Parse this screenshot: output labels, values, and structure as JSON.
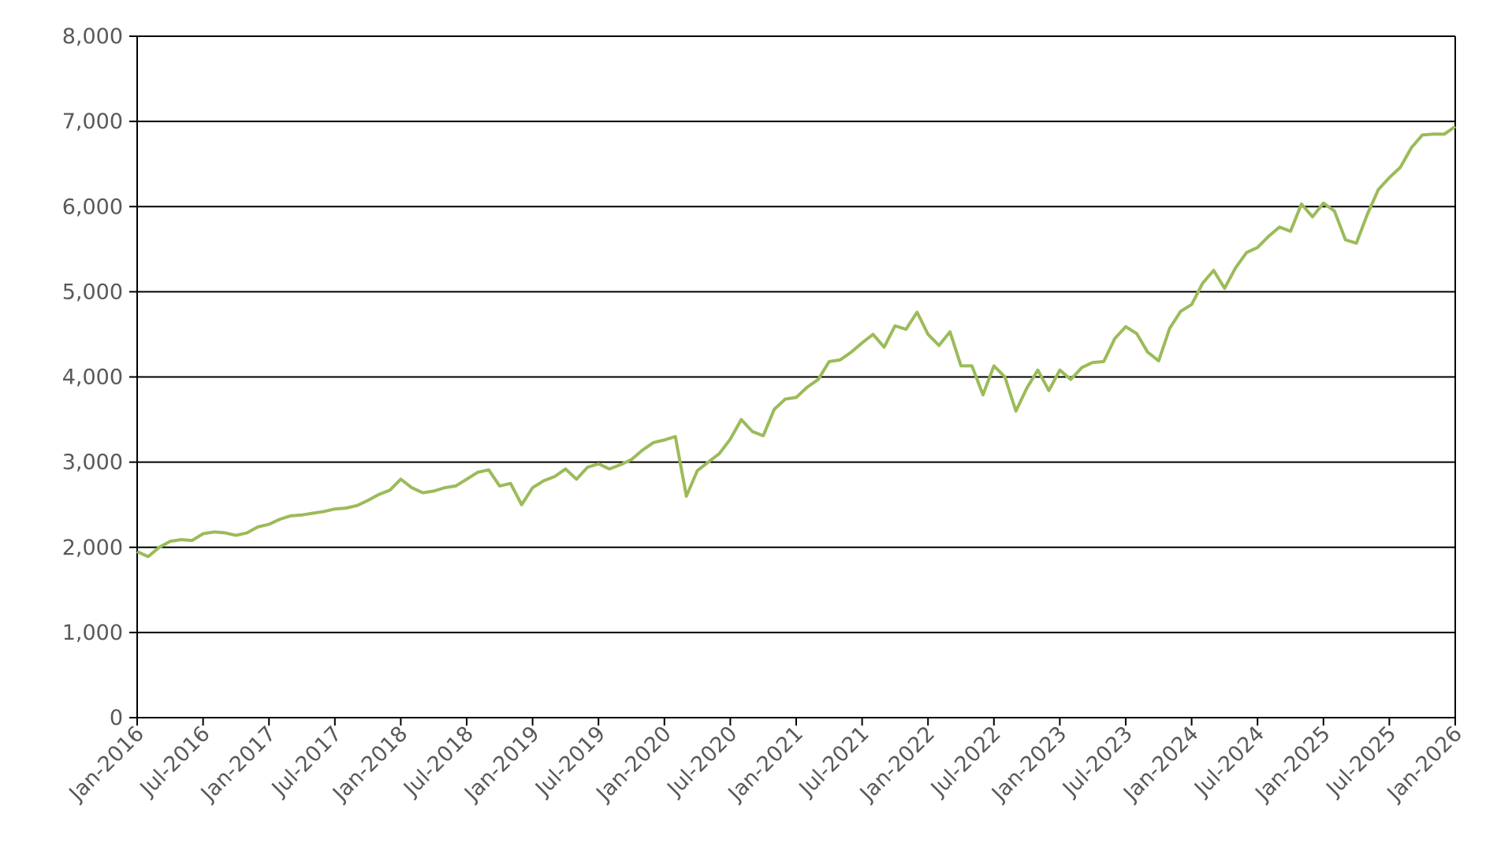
{
  "chart_data": {
    "type": "line",
    "x": [
      "2016-01",
      "2016-02",
      "2016-03",
      "2016-04",
      "2016-05",
      "2016-06",
      "2016-07",
      "2016-08",
      "2016-09",
      "2016-10",
      "2016-11",
      "2016-12",
      "2017-01",
      "2017-02",
      "2017-03",
      "2017-04",
      "2017-05",
      "2017-06",
      "2017-07",
      "2017-08",
      "2017-09",
      "2017-10",
      "2017-11",
      "2017-12",
      "2018-01",
      "2018-02",
      "2018-03",
      "2018-04",
      "2018-05",
      "2018-06",
      "2018-07",
      "2018-08",
      "2018-09",
      "2018-10",
      "2018-11",
      "2018-12",
      "2019-01",
      "2019-02",
      "2019-03",
      "2019-04",
      "2019-05",
      "2019-06",
      "2019-07",
      "2019-08",
      "2019-09",
      "2019-10",
      "2019-11",
      "2019-12",
      "2020-01",
      "2020-02",
      "2020-03",
      "2020-04",
      "2020-05",
      "2020-06",
      "2020-07",
      "2020-08",
      "2020-09",
      "2020-10",
      "2020-11",
      "2020-12",
      "2021-01",
      "2021-02",
      "2021-03",
      "2021-04",
      "2021-05",
      "2021-06",
      "2021-07",
      "2021-08",
      "2021-09",
      "2021-10",
      "2021-11",
      "2021-12",
      "2022-01",
      "2022-02",
      "2022-03",
      "2022-04",
      "2022-05",
      "2022-06",
      "2022-07",
      "2022-08",
      "2022-09",
      "2022-10",
      "2022-11",
      "2022-12",
      "2023-01",
      "2023-02",
      "2023-03",
      "2023-04",
      "2023-05",
      "2023-06",
      "2023-07",
      "2023-08",
      "2023-09",
      "2023-10",
      "2023-11",
      "2023-12",
      "2024-01",
      "2024-02",
      "2024-03",
      "2024-04",
      "2024-05",
      "2024-06",
      "2024-07",
      "2024-08",
      "2024-09",
      "2024-10",
      "2024-11",
      "2024-12",
      "2025-01",
      "2025-02",
      "2025-03",
      "2025-04",
      "2025-05",
      "2025-06",
      "2025-07",
      "2025-08",
      "2025-09",
      "2025-10",
      "2025-11",
      "2025-12",
      "2026-01"
    ],
    "series": [
      {
        "color": "#9bbb59",
        "values": [
          1950,
          1890,
          2000,
          2070,
          2090,
          2080,
          2160,
          2180,
          2170,
          2140,
          2170,
          2240,
          2270,
          2330,
          2370,
          2380,
          2400,
          2420,
          2450,
          2460,
          2490,
          2550,
          2620,
          2670,
          2800,
          2700,
          2640,
          2660,
          2700,
          2720,
          2800,
          2880,
          2910,
          2720,
          2750,
          2500,
          2700,
          2780,
          2830,
          2920,
          2800,
          2940,
          2980,
          2920,
          2970,
          3030,
          3140,
          3230,
          3260,
          3300,
          2600,
          2900,
          3000,
          3100,
          3270,
          3500,
          3360,
          3310,
          3620,
          3740,
          3760,
          3880,
          3970,
          4180,
          4200,
          4290,
          4400,
          4500,
          4350,
          4600,
          4560,
          4760,
          4500,
          4370,
          4530,
          4130,
          4130,
          3790,
          4130,
          4000,
          3600,
          3870,
          4080,
          3840,
          4080,
          3970,
          4110,
          4170,
          4180,
          4450,
          4590,
          4510,
          4290,
          4190,
          4570,
          4770,
          4850,
          5100,
          5250,
          5040,
          5280,
          5460,
          5520,
          5650,
          5760,
          5710,
          6030,
          5880,
          6040,
          5950,
          5610,
          5570,
          5910,
          6200,
          6340,
          6460,
          6690,
          6840,
          6850,
          6850,
          6940
        ]
      }
    ],
    "xlim": [
      "2016-01",
      "2026-01"
    ],
    "xticks": [
      {
        "value": "2016-01",
        "label": "Jan-2016"
      },
      {
        "value": "2016-07",
        "label": "Jul-2016"
      },
      {
        "value": "2017-01",
        "label": "Jan-2017"
      },
      {
        "value": "2017-07",
        "label": "Jul-2017"
      },
      {
        "value": "2018-01",
        "label": "Jan-2018"
      },
      {
        "value": "2018-07",
        "label": "Jul-2018"
      },
      {
        "value": "2019-01",
        "label": "Jan-2019"
      },
      {
        "value": "2019-07",
        "label": "Jul-2019"
      },
      {
        "value": "2020-01",
        "label": "Jan-2020"
      },
      {
        "value": "2020-07",
        "label": "Jul-2020"
      },
      {
        "value": "2021-01",
        "label": "Jan-2021"
      },
      {
        "value": "2021-07",
        "label": "Jul-2021"
      },
      {
        "value": "2022-01",
        "label": "Jan-2022"
      },
      {
        "value": "2022-07",
        "label": "Jul-2022"
      },
      {
        "value": "2023-01",
        "label": "Jan-2023"
      },
      {
        "value": "2023-07",
        "label": "Jul-2023"
      },
      {
        "value": "2024-01",
        "label": "Jan-2024"
      },
      {
        "value": "2024-07",
        "label": "Jul-2024"
      },
      {
        "value": "2025-01",
        "label": "Jan-2025"
      },
      {
        "value": "2025-07",
        "label": "Jul-2025"
      },
      {
        "value": "2026-01",
        "label": "Jan-2026"
      }
    ],
    "ylim": [
      0,
      8000
    ],
    "yticks": [
      0,
      {
        "value": 1000,
        "label": "1,000"
      },
      {
        "value": 2000,
        "label": "2,000"
      },
      {
        "value": 3000,
        "label": "3,000"
      },
      {
        "value": 4000,
        "label": "4,000"
      },
      {
        "value": 5000,
        "label": "5,000"
      },
      {
        "value": 6000,
        "label": "6,000"
      },
      {
        "value": 7000,
        "label": "7,000"
      },
      {
        "value": 8000,
        "label": "8,000"
      }
    ],
    "grid": true
  }
}
